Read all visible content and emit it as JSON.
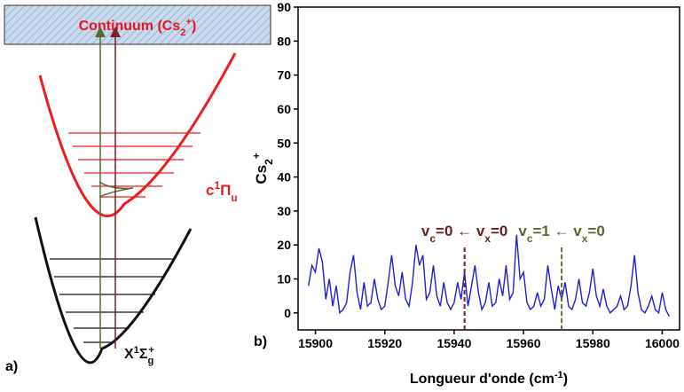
{
  "diagram": {
    "panel_label": "a)",
    "continuum": [
      "Continuum (Cs",
      "2",
      "+",
      ")"
    ],
    "upper_state": [
      "c",
      "1",
      "Π",
      "u"
    ],
    "ground_state": [
      "X",
      "1",
      "Σ",
      "g",
      "+"
    ]
  },
  "chart_data": {
    "type": "line",
    "panel_label": "b)",
    "x_label": [
      "Longueur d'onde (cm",
      "-1",
      ")"
    ],
    "y_label": [
      "Cs",
      "2",
      "+"
    ],
    "xlim": [
      15895,
      16005
    ],
    "ylim": [
      -5,
      90
    ],
    "xticks": [
      15900,
      15920,
      15940,
      15960,
      15980,
      16000
    ],
    "yticks": [
      0,
      10,
      20,
      30,
      40,
      50,
      60,
      70,
      80,
      90
    ],
    "x": [
      15898,
      15899,
      15900,
      15901,
      15902,
      15903,
      15904,
      15905,
      15906,
      15907,
      15908,
      15909,
      15910,
      15911,
      15912,
      15913,
      15914,
      15915,
      15916,
      15917,
      15918,
      15919,
      15920,
      15921,
      15922,
      15923,
      15924,
      15925,
      15926,
      15927,
      15928,
      15929,
      15930,
      15931,
      15932,
      15933,
      15934,
      15935,
      15936,
      15937,
      15938,
      15939,
      15940,
      15941,
      15942,
      15943,
      15944,
      15945,
      15946,
      15947,
      15948,
      15949,
      15950,
      15951,
      15952,
      15953,
      15954,
      15955,
      15956,
      15957,
      15958,
      15959,
      15960,
      15961,
      15962,
      15963,
      15964,
      15965,
      15966,
      15967,
      15968,
      15969,
      15970,
      15971,
      15972,
      15973,
      15974,
      15975,
      15976,
      15977,
      15978,
      15979,
      15980,
      15981,
      15982,
      15983,
      15984,
      15985,
      15986,
      15987,
      15988,
      15989,
      15990,
      15991,
      15992,
      15993,
      15994,
      15995,
      15996,
      15997,
      15998,
      15999,
      16000,
      16001,
      16002
    ],
    "series": [
      {
        "color": "#1f1fd6",
        "values": [
          8,
          14,
          12,
          19,
          15,
          4,
          10,
          2,
          8,
          0,
          1,
          3,
          12,
          17,
          6,
          1,
          9,
          2,
          3,
          10,
          4,
          1,
          2,
          9,
          17,
          8,
          5,
          12,
          4,
          2,
          9,
          20,
          14,
          17,
          4,
          6,
          14,
          5,
          2,
          9,
          3,
          1,
          3,
          9,
          4,
          12,
          2,
          8,
          14,
          6,
          1,
          3,
          9,
          2,
          3,
          10,
          5,
          14,
          4,
          6,
          23,
          10,
          12,
          3,
          1,
          2,
          6,
          2,
          4,
          14,
          7,
          1,
          8,
          4,
          9,
          2,
          1,
          4,
          10,
          3,
          2,
          6,
          13,
          5,
          2,
          7,
          2,
          0,
          1,
          2,
          5,
          1,
          2,
          8,
          17,
          6,
          1,
          0,
          2,
          5,
          1,
          0,
          6,
          1,
          -1
        ]
      }
    ],
    "annotations": [
      {
        "parts": [
          "v",
          "c",
          "=0 ← v",
          "x",
          "=0"
        ],
        "color": "#6b1f1f",
        "x": 15943,
        "y": [
          -5,
          20
        ]
      },
      {
        "parts": [
          "v",
          "c",
          "=1 ← v",
          "x",
          "=0"
        ],
        "color": "#556b2f",
        "x": 15971,
        "y": [
          -5,
          20
        ]
      }
    ]
  }
}
